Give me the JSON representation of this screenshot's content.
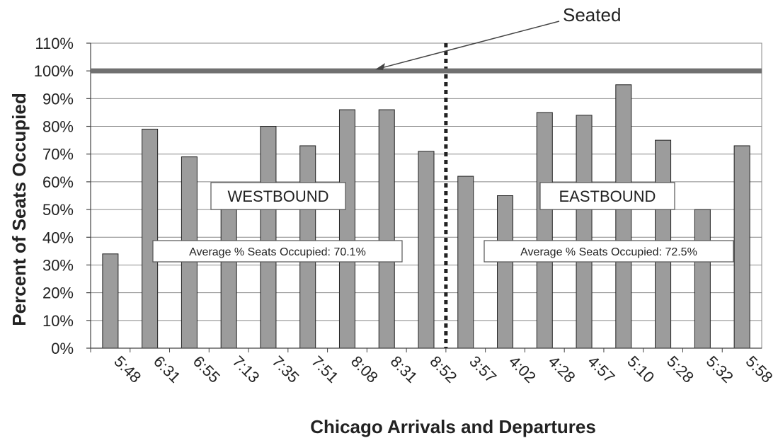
{
  "chart_data": {
    "type": "bar",
    "title": "",
    "xlabel": "Chicago Arrivals and Departures",
    "ylabel": "Percent of Seats Occupied",
    "ylim": [
      0,
      110
    ],
    "yticks": [
      0,
      10,
      20,
      30,
      40,
      50,
      60,
      70,
      80,
      90,
      100,
      110
    ],
    "ytick_labels": [
      "0%",
      "10%",
      "20%",
      "30%",
      "40%",
      "50%",
      "60%",
      "70%",
      "80%",
      "90%",
      "100%",
      "110%"
    ],
    "grid": true,
    "categories": [
      "5:48",
      "6:31",
      "6:55",
      "7:13",
      "7:35",
      "7:51",
      "8:08",
      "8:31",
      "8:52",
      "3:57",
      "4:02",
      "4:28",
      "4:57",
      "5:10",
      "5:28",
      "5:32",
      "5:58"
    ],
    "values": [
      34,
      79,
      69,
      51,
      80,
      73,
      86,
      86,
      71,
      62,
      55,
      85,
      84,
      95,
      75,
      50,
      73
    ],
    "reference_line": {
      "value": 100,
      "label": "Seated"
    },
    "divider_after_index": 8,
    "annotations": {
      "westbound": "WESTBOUND",
      "eastbound": "EASTBOUND",
      "west_average": "Average % Seats Occupied: 70.1%",
      "east_average": "Average % Seats Occupied: 72.5%"
    },
    "colors": {
      "bar": "#9c9c9c",
      "bar_edge": "#222222",
      "reference_line": "#707070",
      "grid": "#888888"
    }
  }
}
